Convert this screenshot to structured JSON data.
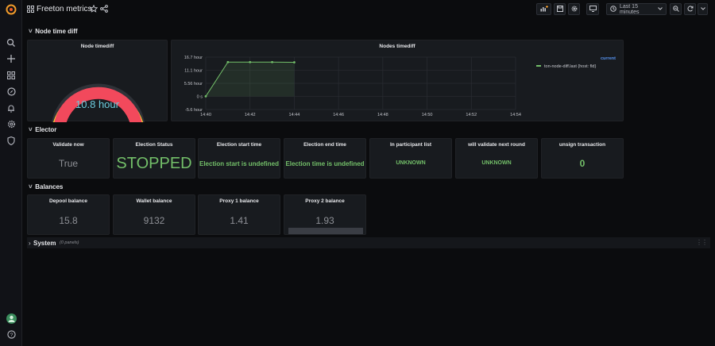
{
  "app": {
    "title": "Freeton metrics"
  },
  "toolbar": {
    "time_range": "Last 15 minutes"
  },
  "rows": {
    "node": "Node time diff",
    "elector": "Elector",
    "balances": "Balances",
    "system": "System",
    "system_count": "(0 panels)"
  },
  "gauge": {
    "title": "Node timediff",
    "value": "10.8 hour"
  },
  "timeseries": {
    "title": "Nodes timediff",
    "legend_header": "current",
    "legend_entry": "ton-node-diff.last {host: fld}"
  },
  "chart_data": {
    "type": "line",
    "title": "Nodes timediff",
    "x": [
      "14:40",
      "14:41",
      "14:42",
      "14:43",
      "14:44"
    ],
    "series": [
      {
        "name": "ton-node-diff.last {host: fld}",
        "values": [
          0,
          14.6,
          14.6,
          14.6,
          14.5
        ],
        "color": "#73bf69"
      }
    ],
    "y_ticks": [
      "16.7 hour",
      "11.1 hour",
      "5.56 hour",
      "0 s",
      "-5.6 hour"
    ],
    "x_ticks": [
      "14:40",
      "14:42",
      "14:44",
      "14:46",
      "14:48",
      "14:50",
      "14:52",
      "14:54"
    ],
    "ylim": [
      -5.6,
      16.7
    ],
    "grid": true,
    "legend": "right"
  },
  "elector": [
    {
      "title": "Validate now",
      "value": "True"
    },
    {
      "title": "Election Status",
      "value": "STOPPED"
    },
    {
      "title": "Election start time",
      "value": "Election start is undefined"
    },
    {
      "title": "Election end time",
      "value": "Election time is undefined"
    },
    {
      "title": "In participant list",
      "value": "UNKNOWN"
    },
    {
      "title": "will validate next round",
      "value": "UNKNOWN"
    },
    {
      "title": "unsign transaction",
      "value": "0"
    }
  ],
  "balances": [
    {
      "title": "Depool balance",
      "value": "15.8"
    },
    {
      "title": "Wallet balance",
      "value": "9132"
    },
    {
      "title": "Proxy 1 balance",
      "value": "1.41"
    },
    {
      "title": "Proxy 2 balance",
      "value": "1.93"
    }
  ]
}
